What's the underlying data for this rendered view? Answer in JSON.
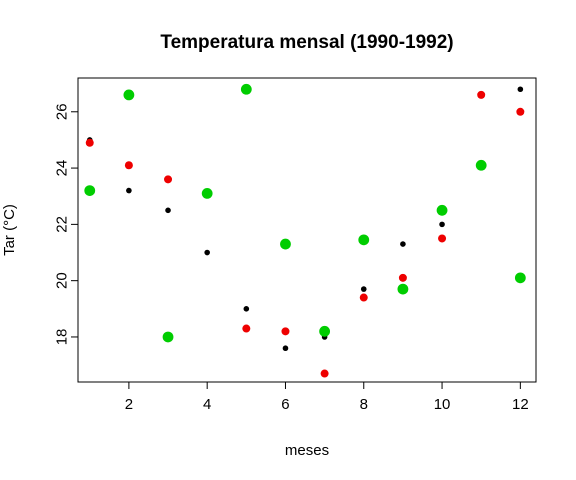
{
  "chart_data": {
    "type": "scatter",
    "title": "Temperatura mensal (1990-1992)",
    "xlabel": "meses",
    "ylabel": "Tar (°C)",
    "xlim": [
      0.7,
      12.4
    ],
    "ylim": [
      16.4,
      27.2
    ],
    "xticks": [
      2,
      4,
      6,
      8,
      10,
      12
    ],
    "yticks": [
      18,
      20,
      22,
      24,
      26
    ],
    "grid": false,
    "series": [
      {
        "color": "#000000",
        "marker": "small-dot",
        "points": [
          {
            "x": 1,
            "y": 25.0
          },
          {
            "x": 2,
            "y": 23.2
          },
          {
            "x": 3,
            "y": 22.5
          },
          {
            "x": 4,
            "y": 21.0
          },
          {
            "x": 5,
            "y": 19.0
          },
          {
            "x": 6,
            "y": 17.6
          },
          {
            "x": 7,
            "y": 18.0
          },
          {
            "x": 8,
            "y": 19.7
          },
          {
            "x": 9,
            "y": 21.3
          },
          {
            "x": 10,
            "y": 22.0
          },
          {
            "x": 11,
            "y": 26.6
          },
          {
            "x": 12,
            "y": 26.8
          }
        ]
      },
      {
        "color": "#ee0000",
        "marker": "medium-dot",
        "points": [
          {
            "x": 1,
            "y": 24.9
          },
          {
            "x": 2,
            "y": 24.1
          },
          {
            "x": 3,
            "y": 23.6
          },
          {
            "x": 4,
            "y": 23.1
          },
          {
            "x": 5,
            "y": 18.3
          },
          {
            "x": 6,
            "y": 18.2
          },
          {
            "x": 7,
            "y": 16.7
          },
          {
            "x": 8,
            "y": 19.4
          },
          {
            "x": 9,
            "y": 20.1
          },
          {
            "x": 10,
            "y": 21.5
          },
          {
            "x": 11,
            "y": 26.6
          },
          {
            "x": 12,
            "y": 26.0
          }
        ]
      },
      {
        "color": "#00cd00",
        "marker": "large-dot",
        "points": [
          {
            "x": 1,
            "y": 23.2
          },
          {
            "x": 2,
            "y": 26.6
          },
          {
            "x": 3,
            "y": 18.0
          },
          {
            "x": 4,
            "y": 23.1
          },
          {
            "x": 5,
            "y": 26.8
          },
          {
            "x": 6,
            "y": 21.3
          },
          {
            "x": 7,
            "y": 18.2
          },
          {
            "x": 8,
            "y": 21.45
          },
          {
            "x": 9,
            "y": 19.7
          },
          {
            "x": 10,
            "y": 22.5
          },
          {
            "x": 11,
            "y": 24.1
          },
          {
            "x": 12,
            "y": 20.1
          }
        ]
      }
    ]
  }
}
